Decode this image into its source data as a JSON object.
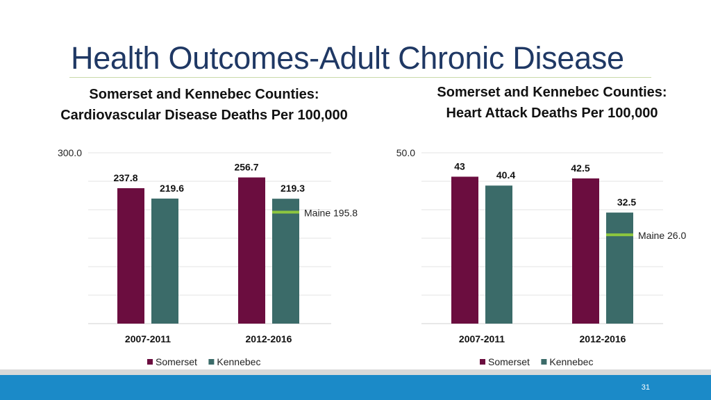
{
  "slide": {
    "title": "Health Outcomes-Adult Chronic Disease",
    "page_number": "31"
  },
  "colors": {
    "somerset": "#6b0d3f",
    "kennebec": "#3b6b69",
    "maine_line": "#8dc63f",
    "title": "#1f3864",
    "band": "#1b8ac8"
  },
  "chart_data": [
    {
      "type": "bar",
      "title": "Somerset and Kennebec Counties:\nCardiovascular Disease Deaths Per 100,000",
      "categories": [
        "2007-2011",
        "2012-2016"
      ],
      "series": [
        {
          "name": "Somerset",
          "values": [
            237.8,
            256.7
          ],
          "labels": [
            "237.8",
            "256.7"
          ]
        },
        {
          "name": "Kennebec",
          "values": [
            219.6,
            219.3
          ],
          "labels": [
            "219.6",
            "219.3"
          ]
        }
      ],
      "ylim": [
        0,
        300
      ],
      "top_tick_label": "300.0",
      "grid": true,
      "legend_position": "bottom",
      "reference": {
        "value": 195.8,
        "label": "Maine 195.8",
        "category_index": 1,
        "series_index": 1
      }
    },
    {
      "type": "bar",
      "title": "Somerset and Kennebec Counties:\nHeart Attack Deaths Per 100,000",
      "categories": [
        "2007-2011",
        "2012-2016"
      ],
      "series": [
        {
          "name": "Somerset",
          "values": [
            43,
            42.5
          ],
          "labels": [
            "43",
            "42.5"
          ]
        },
        {
          "name": "Kennebec",
          "values": [
            40.4,
            32.5
          ],
          "labels": [
            "40.4",
            "32.5"
          ]
        }
      ],
      "ylim": [
        0,
        50
      ],
      "top_tick_label": "50.0",
      "grid": true,
      "legend_position": "bottom",
      "reference": {
        "value": 26.0,
        "label": "Maine 26.0",
        "category_index": 1,
        "series_index": 1
      }
    }
  ]
}
